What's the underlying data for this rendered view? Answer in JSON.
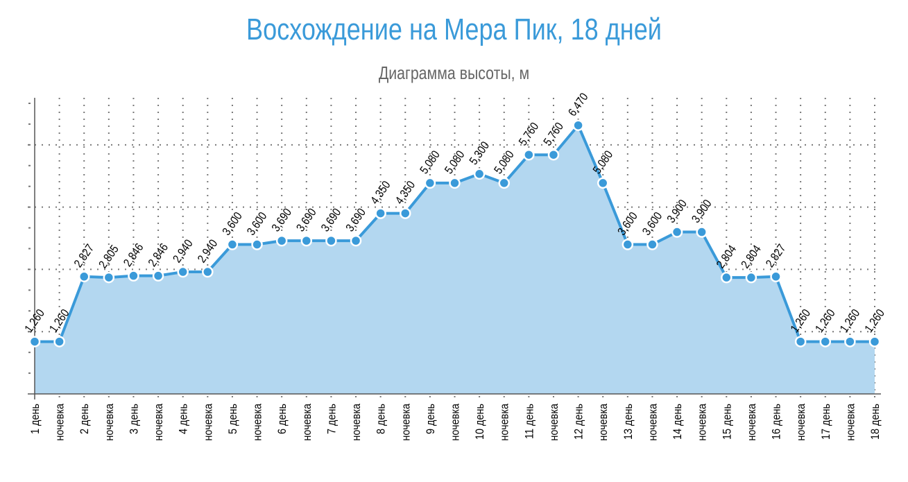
{
  "chart_data": {
    "type": "area",
    "title": "Восхождение на Мера Пик, 18 дней",
    "subtitle": "Диаграмма высоты, м",
    "categories": [
      "1 день",
      "ночевка",
      "2 день",
      "ночевка",
      "3 день",
      "ночевка",
      "4 день",
      "ночевка",
      "5 день",
      "ночевка",
      "6 день",
      "ночевка",
      "7 день",
      "ночевка",
      "8 день",
      "ночевка",
      "9 день",
      "ночевка",
      "10 день",
      "ночевка",
      "11 день",
      "ночевка",
      "12 день",
      "ночевка",
      "13 день",
      "ночевка",
      "14 день",
      "ночевка",
      "15 день",
      "ночевка",
      "16 день",
      "ночевка",
      "17 день",
      "ночевка",
      "18 день"
    ],
    "values": [
      1260,
      1260,
      2827,
      2805,
      2846,
      2846,
      2940,
      2940,
      3600,
      3600,
      3690,
      3690,
      3690,
      3690,
      4350,
      4350,
      5080,
      5080,
      5300,
      5080,
      5760,
      5760,
      6470,
      5080,
      3600,
      3600,
      3900,
      3900,
      2804,
      2804,
      2827,
      1260,
      1260,
      1260,
      1260
    ],
    "data_labels": [
      "1,260",
      "1,260",
      "2,827",
      "2,805",
      "2,846",
      "2,846",
      "2,940",
      "2,940",
      "3,600",
      "3,600",
      "3,690",
      "3,690",
      "3,690",
      "3,690",
      "4,350",
      "4,350",
      "5,080",
      "5,080",
      "5,300",
      "5,080",
      "5,760",
      "5,760",
      "6,470",
      "5,080",
      "3,600",
      "3,600",
      "3,900",
      "3,900",
      "2,804",
      "2,804",
      "2,827",
      "1,260",
      "1,260",
      "1,260",
      "1,260"
    ],
    "ylim": [
      0,
      7000
    ],
    "y_gridlines": [
      1500,
      3000,
      4500,
      6000
    ],
    "y_tick_labels_shown": false,
    "grid": "dotted",
    "legend": "none",
    "colors": {
      "line": "#3a9ad9",
      "fill": "#b3d7f0",
      "title": "#3a9ad9",
      "subtitle": "#666666"
    }
  }
}
